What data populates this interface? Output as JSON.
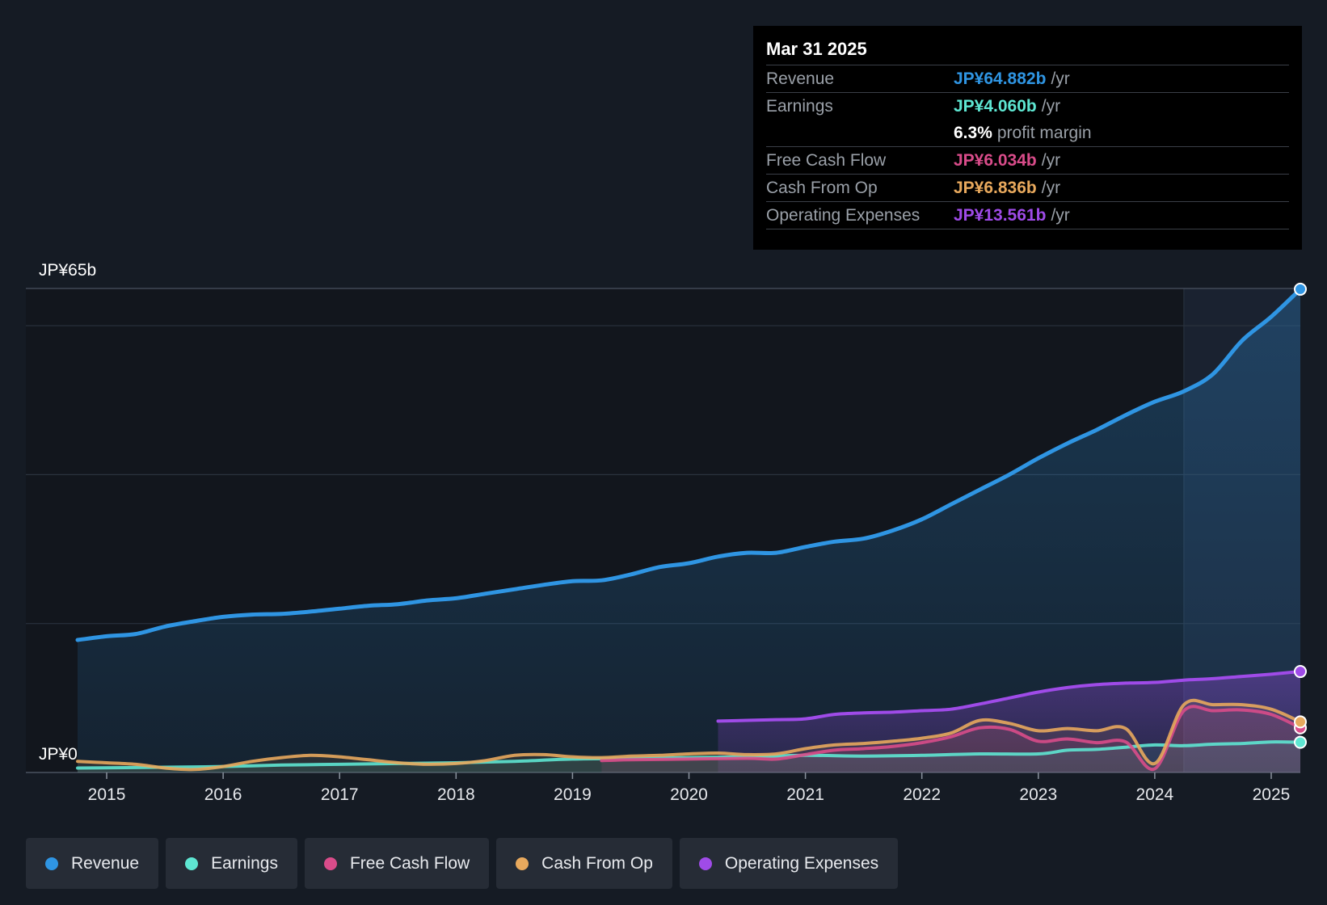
{
  "chart_data": {
    "type": "area",
    "title": "",
    "y_unit_labels": {
      "top": "JP¥65b",
      "bottom": "JP¥0"
    },
    "ylim": [
      0,
      65
    ],
    "xlim": [
      2014.75,
      2025.25
    ],
    "x_ticks": [
      "2015",
      "2016",
      "2017",
      "2018",
      "2019",
      "2020",
      "2021",
      "2022",
      "2023",
      "2024",
      "2025"
    ],
    "highlight_start": 2024.25,
    "series": [
      {
        "name": "Revenue",
        "color": "#2f95e3",
        "x": [
          2014.75,
          2015.0,
          2015.25,
          2015.5,
          2015.75,
          2016.0,
          2016.25,
          2016.5,
          2016.75,
          2017.0,
          2017.25,
          2017.5,
          2017.75,
          2018.0,
          2018.25,
          2018.5,
          2018.75,
          2019.0,
          2019.25,
          2019.5,
          2019.75,
          2020.0,
          2020.25,
          2020.5,
          2020.75,
          2021.0,
          2021.25,
          2021.5,
          2021.75,
          2022.0,
          2022.25,
          2022.5,
          2022.75,
          2023.0,
          2023.25,
          2023.5,
          2023.75,
          2024.0,
          2024.25,
          2024.5,
          2024.75,
          2025.0,
          2025.25
        ],
        "values": [
          17.8,
          18.3,
          18.6,
          19.6,
          20.3,
          20.9,
          21.2,
          21.3,
          21.6,
          22.0,
          22.4,
          22.6,
          23.1,
          23.4,
          24.0,
          24.6,
          25.2,
          25.7,
          25.8,
          26.6,
          27.6,
          28.1,
          29.0,
          29.5,
          29.5,
          30.3,
          31.0,
          31.4,
          32.5,
          34.0,
          36.0,
          38.0,
          40.0,
          42.2,
          44.2,
          46.0,
          48.0,
          49.8,
          51.2,
          53.5,
          58.0,
          61.2,
          64.9
        ]
      },
      {
        "name": "Earnings",
        "color": "#5ee6d2",
        "x": [
          2014.75,
          2015.5,
          2016.0,
          2016.5,
          2017.0,
          2017.5,
          2018.0,
          2018.5,
          2019.0,
          2019.5,
          2020.0,
          2020.5,
          2021.0,
          2021.5,
          2022.0,
          2022.5,
          2023.0,
          2023.25,
          2023.5,
          2023.75,
          2024.0,
          2024.25,
          2024.5,
          2024.75,
          2025.0,
          2025.25
        ],
        "values": [
          0.6,
          0.7,
          0.8,
          1.0,
          1.1,
          1.2,
          1.3,
          1.5,
          1.8,
          1.9,
          2.0,
          2.1,
          2.3,
          2.2,
          2.3,
          2.5,
          2.5,
          3.0,
          3.1,
          3.4,
          3.7,
          3.6,
          3.8,
          3.9,
          4.1,
          4.06
        ]
      },
      {
        "name": "Free Cash Flow",
        "color": "#d94c8a",
        "x": [
          2019.25,
          2019.5,
          2020.0,
          2020.5,
          2020.75,
          2021.0,
          2021.25,
          2021.5,
          2021.75,
          2022.0,
          2022.25,
          2022.5,
          2022.75,
          2023.0,
          2023.25,
          2023.5,
          2023.75,
          2024.0,
          2024.25,
          2024.5,
          2024.75,
          2025.0,
          2025.25
        ],
        "values": [
          1.6,
          1.7,
          1.8,
          1.9,
          1.8,
          2.4,
          3.0,
          3.2,
          3.5,
          4.0,
          4.8,
          6.0,
          5.8,
          4.2,
          4.5,
          4.0,
          4.1,
          0.5,
          8.3,
          8.3,
          8.4,
          7.8,
          6.0
        ]
      },
      {
        "name": "Cash From Op",
        "color": "#e8a95d",
        "x": [
          2014.75,
          2015.0,
          2015.25,
          2015.5,
          2015.75,
          2016.0,
          2016.25,
          2016.5,
          2016.75,
          2017.0,
          2017.25,
          2017.5,
          2017.75,
          2018.0,
          2018.25,
          2018.5,
          2018.75,
          2019.0,
          2019.25,
          2019.5,
          2019.75,
          2020.0,
          2020.25,
          2020.5,
          2020.75,
          2021.0,
          2021.25,
          2021.5,
          2021.75,
          2022.0,
          2022.25,
          2022.5,
          2022.75,
          2023.0,
          2023.25,
          2023.5,
          2023.75,
          2024.0,
          2024.25,
          2024.5,
          2024.75,
          2025.0,
          2025.25
        ],
        "values": [
          1.5,
          1.3,
          1.1,
          0.6,
          0.4,
          0.8,
          1.5,
          2.0,
          2.3,
          2.1,
          1.7,
          1.3,
          1.1,
          1.2,
          1.6,
          2.3,
          2.4,
          2.1,
          2.0,
          2.2,
          2.3,
          2.5,
          2.6,
          2.4,
          2.5,
          3.2,
          3.7,
          3.9,
          4.2,
          4.6,
          5.3,
          7.0,
          6.6,
          5.6,
          5.9,
          5.6,
          5.9,
          1.2,
          9.1,
          9.1,
          9.1,
          8.5,
          6.8
        ]
      },
      {
        "name": "Operating Expenses",
        "color": "#9f4be8",
        "x": [
          2020.25,
          2020.5,
          2020.75,
          2021.0,
          2021.25,
          2021.5,
          2021.75,
          2022.0,
          2022.25,
          2022.5,
          2022.75,
          2023.0,
          2023.25,
          2023.5,
          2023.75,
          2024.0,
          2024.25,
          2024.5,
          2024.75,
          2025.0,
          2025.25
        ],
        "values": [
          6.9,
          7.0,
          7.1,
          7.2,
          7.8,
          8.0,
          8.1,
          8.3,
          8.5,
          9.2,
          10.0,
          10.8,
          11.4,
          11.8,
          12.0,
          12.1,
          12.4,
          12.6,
          12.9,
          13.2,
          13.56
        ]
      }
    ]
  },
  "tooltip": {
    "date": "Mar 31 2025",
    "rows": [
      {
        "label": "Revenue",
        "value": "JP¥64.882b",
        "unit": "/yr",
        "color": "#2f95e3"
      },
      {
        "label": "Earnings",
        "value": "JP¥4.060b",
        "unit": "/yr",
        "color": "#5ee6d2"
      },
      {
        "label": "",
        "value": "6.3%",
        "unit": "profit margin",
        "color": "#ffffff"
      },
      {
        "label": "Free Cash Flow",
        "value": "JP¥6.034b",
        "unit": "/yr",
        "color": "#d94c8a"
      },
      {
        "label": "Cash From Op",
        "value": "JP¥6.836b",
        "unit": "/yr",
        "color": "#e8a95d"
      },
      {
        "label": "Operating Expenses",
        "value": "JP¥13.561b",
        "unit": "/yr",
        "color": "#9f4be8"
      }
    ]
  },
  "legend": [
    {
      "label": "Revenue",
      "color": "#2f95e3"
    },
    {
      "label": "Earnings",
      "color": "#5ee6d2"
    },
    {
      "label": "Free Cash Flow",
      "color": "#d94c8a"
    },
    {
      "label": "Cash From Op",
      "color": "#e8a95d"
    },
    {
      "label": "Operating Expenses",
      "color": "#9f4be8"
    }
  ]
}
